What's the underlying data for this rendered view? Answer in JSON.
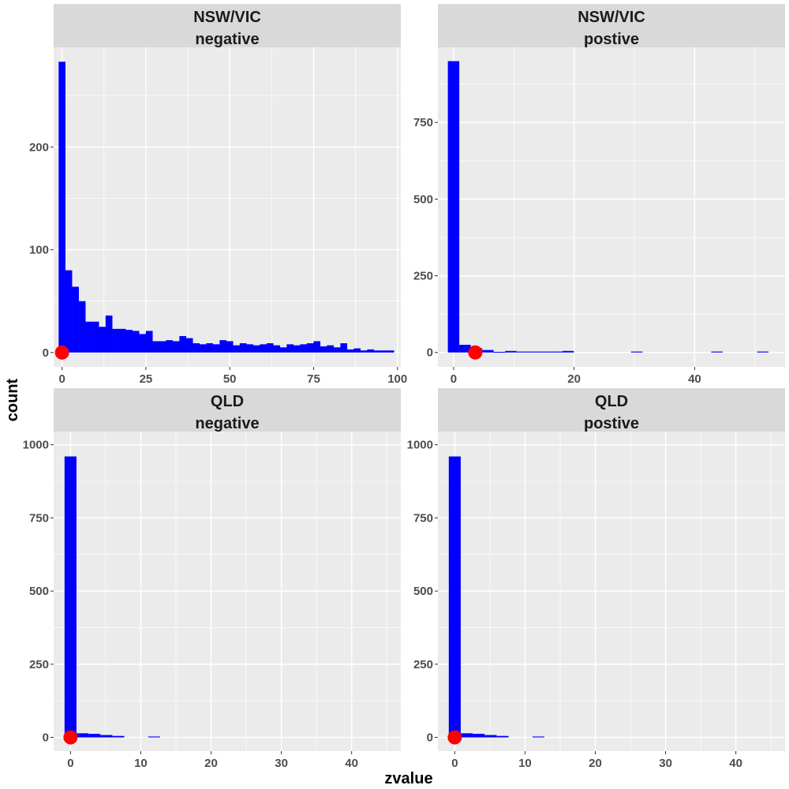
{
  "chart_data": {
    "type": "bar",
    "subtype": "faceted-histogram",
    "xlabel": "zvalue",
    "ylabel": "count",
    "colors": {
      "bar": "#0000FF",
      "marker": "#FF0000",
      "panel": "#EBEBEB",
      "strip": "#D9D9D9",
      "grid": "#FFFFFF"
    },
    "grid": true,
    "facets": [
      {
        "strip": [
          "NSW/VIC",
          "negative"
        ],
        "xlim": [
          -2.5,
          101
        ],
        "ylim": [
          -14,
          297
        ],
        "xticks": [
          0,
          25,
          50,
          75,
          100
        ],
        "yticks": [
          0,
          100,
          200
        ],
        "binwidth": 2.04,
        "bins": [
          {
            "x": 0,
            "count": 283
          },
          {
            "x": 2,
            "count": 80
          },
          {
            "x": 4,
            "count": 64
          },
          {
            "x": 6,
            "count": 50
          },
          {
            "x": 8,
            "count": 30
          },
          {
            "x": 10,
            "count": 30
          },
          {
            "x": 12,
            "count": 25
          },
          {
            "x": 14,
            "count": 36
          },
          {
            "x": 16,
            "count": 23
          },
          {
            "x": 18,
            "count": 23
          },
          {
            "x": 20,
            "count": 22
          },
          {
            "x": 22,
            "count": 21
          },
          {
            "x": 24,
            "count": 18
          },
          {
            "x": 26,
            "count": 21
          },
          {
            "x": 28,
            "count": 11
          },
          {
            "x": 30,
            "count": 11
          },
          {
            "x": 32,
            "count": 12
          },
          {
            "x": 34,
            "count": 11
          },
          {
            "x": 36,
            "count": 16
          },
          {
            "x": 38,
            "count": 14
          },
          {
            "x": 40,
            "count": 9
          },
          {
            "x": 42,
            "count": 8
          },
          {
            "x": 44,
            "count": 9
          },
          {
            "x": 46,
            "count": 8
          },
          {
            "x": 48,
            "count": 12
          },
          {
            "x": 50,
            "count": 11
          },
          {
            "x": 52,
            "count": 7
          },
          {
            "x": 54,
            "count": 9
          },
          {
            "x": 56,
            "count": 8
          },
          {
            "x": 58,
            "count": 7
          },
          {
            "x": 60,
            "count": 8
          },
          {
            "x": 62,
            "count": 9
          },
          {
            "x": 64,
            "count": 7
          },
          {
            "x": 66,
            "count": 5
          },
          {
            "x": 68,
            "count": 8
          },
          {
            "x": 70,
            "count": 7
          },
          {
            "x": 72,
            "count": 8
          },
          {
            "x": 74,
            "count": 9
          },
          {
            "x": 76,
            "count": 11
          },
          {
            "x": 78,
            "count": 6
          },
          {
            "x": 80,
            "count": 7
          },
          {
            "x": 82,
            "count": 5
          },
          {
            "x": 84,
            "count": 9
          },
          {
            "x": 86,
            "count": 3
          },
          {
            "x": 88,
            "count": 4
          },
          {
            "x": 90,
            "count": 2
          },
          {
            "x": 92,
            "count": 3
          },
          {
            "x": 94,
            "count": 2
          },
          {
            "x": 96,
            "count": 2
          },
          {
            "x": 98,
            "count": 2
          }
        ],
        "point": {
          "x": 0,
          "y": 0
        }
      },
      {
        "strip": [
          "NSW/VIC",
          "postive"
        ],
        "xlim": [
          -2.6,
          55
        ],
        "ylim": [
          -47,
          995
        ],
        "xticks": [
          0,
          20,
          40
        ],
        "yticks": [
          0,
          250,
          500,
          750
        ],
        "binwidth": 1.9,
        "bins": [
          {
            "x": 0,
            "count": 950
          },
          {
            "x": 1.9,
            "count": 25
          },
          {
            "x": 3.8,
            "count": 14
          },
          {
            "x": 5.7,
            "count": 8
          },
          {
            "x": 7.6,
            "count": 2
          },
          {
            "x": 9.5,
            "count": 5
          },
          {
            "x": 11.4,
            "count": 3
          },
          {
            "x": 13.3,
            "count": 3
          },
          {
            "x": 15.2,
            "count": 3
          },
          {
            "x": 17.1,
            "count": 3
          },
          {
            "x": 19,
            "count": 5
          },
          {
            "x": 30.4,
            "count": 3
          },
          {
            "x": 43.7,
            "count": 3
          },
          {
            "x": 51.3,
            "count": 3
          }
        ],
        "point": {
          "x": 3.6,
          "y": 0
        }
      },
      {
        "strip": [
          "QLD",
          "negative"
        ],
        "xlim": [
          -2.4,
          47
        ],
        "ylim": [
          -47,
          1045
        ],
        "xticks": [
          0,
          10,
          20,
          30,
          40
        ],
        "yticks": [
          0,
          250,
          500,
          750,
          1000
        ],
        "binwidth": 1.7,
        "bins": [
          {
            "x": 0,
            "count": 960
          },
          {
            "x": 1.7,
            "count": 14
          },
          {
            "x": 3.4,
            "count": 12
          },
          {
            "x": 5.1,
            "count": 8
          },
          {
            "x": 6.8,
            "count": 5
          },
          {
            "x": 11.9,
            "count": 3
          }
        ],
        "point": {
          "x": 0,
          "y": 0
        }
      },
      {
        "strip": [
          "QLD",
          "postive"
        ],
        "xlim": [
          -2.4,
          47
        ],
        "ylim": [
          -47,
          1045
        ],
        "xticks": [
          0,
          10,
          20,
          30,
          40
        ],
        "yticks": [
          0,
          250,
          500,
          750,
          1000
        ],
        "binwidth": 1.7,
        "bins": [
          {
            "x": 0,
            "count": 960
          },
          {
            "x": 1.7,
            "count": 14
          },
          {
            "x": 3.4,
            "count": 12
          },
          {
            "x": 5.1,
            "count": 8
          },
          {
            "x": 6.8,
            "count": 5
          },
          {
            "x": 11.9,
            "count": 3
          }
        ],
        "point": {
          "x": 0,
          "y": 0
        }
      }
    ]
  }
}
